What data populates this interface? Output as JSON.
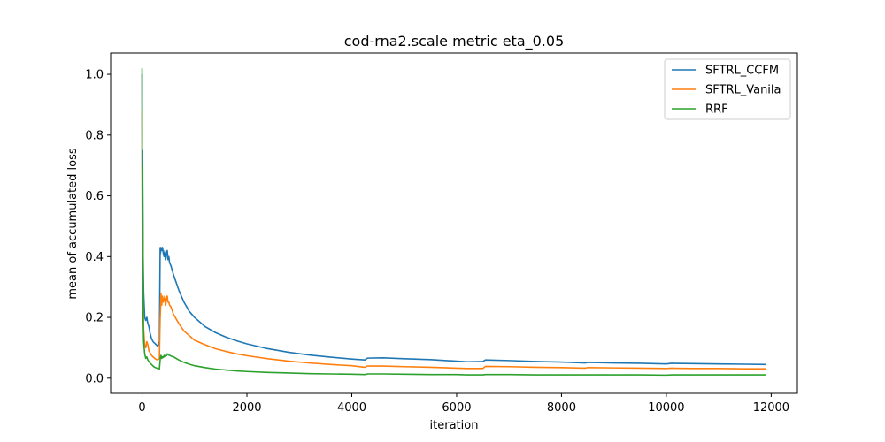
{
  "chart_data": {
    "type": "line",
    "title": "cod-rna2.scale metric eta_0.05",
    "xlabel": "iteration",
    "ylabel": "mean of accumulated loss",
    "xlim": [
      -600,
      12500
    ],
    "ylim": [
      -0.05,
      1.07
    ],
    "xticks": [
      0,
      2000,
      4000,
      6000,
      8000,
      10000,
      12000
    ],
    "xtick_labels": [
      "0",
      "2000",
      "4000",
      "6000",
      "8000",
      "10000",
      "12000"
    ],
    "yticks": [
      0.0,
      0.2,
      0.4,
      0.6,
      0.8,
      1.0
    ],
    "ytick_labels": [
      "0.0",
      "0.2",
      "0.4",
      "0.6",
      "0.8",
      "1.0"
    ],
    "grid": false,
    "legend_position": "top-right",
    "series": [
      {
        "name": "SFTRL_CCFM",
        "color": "#1f77b4",
        "x": [
          0,
          5,
          10,
          20,
          30,
          50,
          70,
          90,
          110,
          130,
          150,
          180,
          210,
          240,
          270,
          300,
          330,
          345,
          350,
          360,
          375,
          390,
          405,
          420,
          435,
          450,
          465,
          480,
          495,
          510,
          525,
          550,
          600,
          700,
          800,
          900,
          1000,
          1200,
          1400,
          1600,
          1800,
          2000,
          2400,
          2800,
          3200,
          3600,
          4000,
          4250,
          4300,
          4600,
          5000,
          5500,
          6000,
          6200,
          6500,
          6550,
          7000,
          7500,
          8000,
          8450,
          8500,
          9000,
          9500,
          10000,
          10100,
          10500,
          11000,
          11500,
          11900
        ],
        "y": [
          1.0,
          0.55,
          0.75,
          0.4,
          0.28,
          0.2,
          0.19,
          0.2,
          0.18,
          0.17,
          0.15,
          0.13,
          0.12,
          0.115,
          0.11,
          0.105,
          0.12,
          0.43,
          0.41,
          0.43,
          0.42,
          0.43,
          0.41,
          0.4,
          0.42,
          0.39,
          0.41,
          0.42,
          0.39,
          0.4,
          0.38,
          0.37,
          0.34,
          0.29,
          0.25,
          0.22,
          0.2,
          0.17,
          0.15,
          0.135,
          0.123,
          0.113,
          0.097,
          0.085,
          0.076,
          0.069,
          0.063,
          0.06,
          0.066,
          0.067,
          0.064,
          0.061,
          0.056,
          0.054,
          0.055,
          0.06,
          0.058,
          0.055,
          0.053,
          0.05,
          0.052,
          0.05,
          0.049,
          0.047,
          0.049,
          0.048,
          0.047,
          0.046,
          0.045
        ]
      },
      {
        "name": "SFTRL_Vanila",
        "color": "#ff7f0e",
        "x": [
          0,
          5,
          10,
          20,
          30,
          50,
          70,
          90,
          110,
          130,
          150,
          180,
          210,
          240,
          270,
          300,
          330,
          345,
          350,
          360,
          375,
          390,
          405,
          420,
          435,
          450,
          465,
          480,
          495,
          510,
          525,
          550,
          600,
          700,
          800,
          900,
          1000,
          1200,
          1400,
          1600,
          1800,
          2000,
          2400,
          2800,
          3200,
          3600,
          4000,
          4250,
          4300,
          4600,
          5000,
          5500,
          6000,
          6200,
          6500,
          6550,
          7000,
          7500,
          8000,
          8450,
          8500,
          9000,
          9500,
          10000,
          10100,
          10500,
          11000,
          11500,
          11900
        ],
        "y": [
          0.88,
          0.45,
          0.6,
          0.25,
          0.16,
          0.11,
          0.1,
          0.12,
          0.11,
          0.09,
          0.085,
          0.075,
          0.07,
          0.065,
          0.062,
          0.06,
          0.065,
          0.2,
          0.22,
          0.28,
          0.24,
          0.27,
          0.25,
          0.26,
          0.27,
          0.24,
          0.26,
          0.27,
          0.25,
          0.25,
          0.24,
          0.235,
          0.21,
          0.18,
          0.155,
          0.14,
          0.125,
          0.11,
          0.097,
          0.088,
          0.08,
          0.074,
          0.064,
          0.056,
          0.05,
          0.045,
          0.041,
          0.036,
          0.04,
          0.04,
          0.038,
          0.036,
          0.033,
          0.032,
          0.032,
          0.039,
          0.038,
          0.036,
          0.035,
          0.033,
          0.035,
          0.034,
          0.033,
          0.032,
          0.033,
          0.032,
          0.032,
          0.031,
          0.031
        ]
      },
      {
        "name": "RRF",
        "color": "#2ca02c",
        "x": [
          0,
          5,
          10,
          20,
          30,
          50,
          70,
          90,
          110,
          130,
          150,
          180,
          210,
          240,
          270,
          300,
          330,
          345,
          350,
          360,
          375,
          390,
          405,
          420,
          435,
          450,
          465,
          480,
          495,
          510,
          525,
          550,
          600,
          700,
          800,
          900,
          1000,
          1200,
          1400,
          1600,
          1800,
          2000,
          2400,
          2800,
          3200,
          3600,
          4000,
          4250,
          4300,
          4600,
          5000,
          5500,
          6000,
          6200,
          6500,
          6550,
          7000,
          7500,
          8000,
          8450,
          8500,
          9000,
          9500,
          10000,
          10100,
          10500,
          11000,
          11500,
          11900
        ],
        "y": [
          1.02,
          0.35,
          0.7,
          0.2,
          0.12,
          0.08,
          0.065,
          0.07,
          0.06,
          0.055,
          0.05,
          0.045,
          0.04,
          0.036,
          0.034,
          0.032,
          0.03,
          0.06,
          0.07,
          0.075,
          0.065,
          0.07,
          0.068,
          0.075,
          0.07,
          0.072,
          0.074,
          0.08,
          0.078,
          0.076,
          0.075,
          0.073,
          0.07,
          0.06,
          0.052,
          0.046,
          0.041,
          0.035,
          0.03,
          0.027,
          0.024,
          0.022,
          0.019,
          0.017,
          0.015,
          0.014,
          0.013,
          0.012,
          0.014,
          0.014,
          0.013,
          0.012,
          0.012,
          0.011,
          0.011,
          0.012,
          0.012,
          0.011,
          0.011,
          0.011,
          0.011,
          0.011,
          0.011,
          0.01,
          0.011,
          0.011,
          0.011,
          0.011,
          0.011
        ]
      }
    ]
  }
}
